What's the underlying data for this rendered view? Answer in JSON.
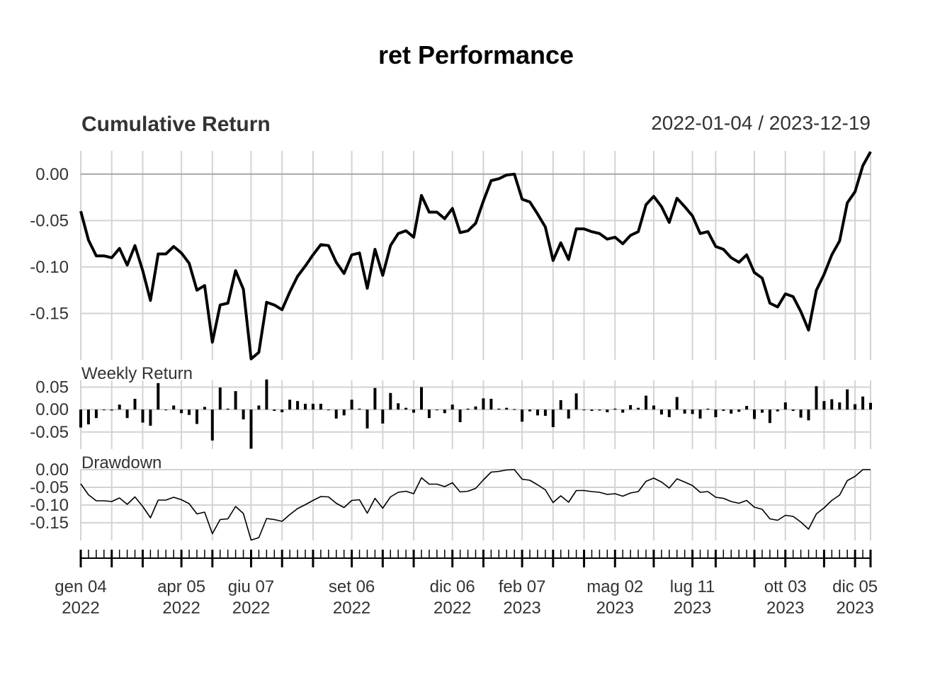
{
  "chart_data": {
    "type": "line",
    "title": "ret Performance",
    "date_range": "2022-01-04 / 2023-12-19",
    "start_date": "2022-01-04",
    "panels": {
      "cumulative": {
        "title": "Cumulative Return",
        "yticks": [
          0.0,
          -0.05,
          -0.1,
          -0.15
        ],
        "ytick_labels": [
          "0.00",
          "-0.05",
          "-0.10",
          "-0.15"
        ],
        "ylim": [
          -0.2,
          0.025
        ]
      },
      "weekly": {
        "title": "Weekly Return",
        "yticks": [
          0.05,
          0.0,
          -0.05
        ],
        "ytick_labels": [
          "0.05",
          "0.00",
          "-0.05"
        ],
        "ylim": [
          -0.088,
          0.065
        ]
      },
      "drawdown": {
        "title": "Drawdown",
        "yticks": [
          0.0,
          -0.05,
          -0.1,
          -0.15
        ],
        "ytick_labels": [
          "0.00",
          "-0.05",
          "-0.10",
          "-0.15"
        ],
        "ylim": [
          -0.2,
          0.0
        ]
      }
    },
    "x_tick_labels": [
      {
        "line1": "gen 04",
        "line2": "2022"
      },
      {
        "line1": "apr 05",
        "line2": "2022"
      },
      {
        "line1": "giu 07",
        "line2": "2022"
      },
      {
        "line1": "set 06",
        "line2": "2022"
      },
      {
        "line1": "dic 06",
        "line2": "2022"
      },
      {
        "line1": "feb 07",
        "line2": "2023"
      },
      {
        "line1": "mag 02",
        "line2": "2023"
      },
      {
        "line1": "lug 11",
        "line2": "2023"
      },
      {
        "line1": "ott 03",
        "line2": "2023"
      },
      {
        "line1": "dic 05",
        "line2": "2023"
      }
    ],
    "x_label_dates": [
      "2022-01-04",
      "2022-04-05",
      "2022-06-07",
      "2022-09-06",
      "2022-12-06",
      "2023-02-07",
      "2023-05-02",
      "2023-07-11",
      "2023-10-03",
      "2023-12-05"
    ],
    "x_grid_dates": [
      "2022-01-04",
      "2022-02-01",
      "2022-03-01",
      "2022-04-05",
      "2022-05-03",
      "2022-06-07",
      "2022-07-05",
      "2022-08-02",
      "2022-09-06",
      "2022-10-04",
      "2022-11-01",
      "2022-12-06",
      "2023-01-03",
      "2023-02-07",
      "2023-03-07",
      "2023-04-04",
      "2023-05-02",
      "2023-06-06",
      "2023-07-11",
      "2023-08-01",
      "2023-09-05",
      "2023-10-03",
      "2023-11-07",
      "2023-12-05",
      "2023-12-19"
    ],
    "series": [
      {
        "name": "ret",
        "cumulative_return": [
          -0.04,
          -0.071,
          -0.088,
          -0.088,
          -0.09,
          -0.08,
          -0.098,
          -0.077,
          -0.104,
          -0.136,
          -0.086,
          -0.086,
          -0.078,
          -0.085,
          -0.096,
          -0.125,
          -0.12,
          -0.181,
          -0.141,
          -0.139,
          -0.104,
          -0.124,
          -0.199,
          -0.192,
          -0.138,
          -0.141,
          -0.146,
          -0.127,
          -0.11,
          -0.099,
          -0.087,
          -0.076,
          -0.077,
          -0.095,
          -0.107,
          -0.087,
          -0.085,
          -0.123,
          -0.081,
          -0.109,
          -0.077,
          -0.064,
          -0.061,
          -0.068,
          -0.023,
          -0.041,
          -0.041,
          -0.048,
          -0.037,
          -0.063,
          -0.061,
          -0.053,
          -0.029,
          -0.007,
          -0.005,
          -0.001,
          0.0,
          -0.027,
          -0.03,
          -0.043,
          -0.057,
          -0.093,
          -0.074,
          -0.092,
          -0.059,
          -0.059,
          -0.062,
          -0.064,
          -0.07,
          -0.068,
          -0.075,
          -0.066,
          -0.062,
          -0.033,
          -0.024,
          -0.035,
          -0.052,
          -0.026,
          -0.035,
          -0.045,
          -0.064,
          -0.062,
          -0.078,
          -0.081,
          -0.09,
          -0.095,
          -0.087,
          -0.106,
          -0.112,
          -0.139,
          -0.143,
          -0.129,
          -0.132,
          -0.148,
          -0.168,
          -0.125,
          -0.108,
          -0.087,
          -0.072,
          -0.031,
          -0.019,
          0.009,
          0.024
        ],
        "weekly_return": [
          -0.04,
          -0.033,
          -0.019,
          0.0,
          -0.002,
          0.011,
          -0.019,
          0.024,
          -0.029,
          -0.036,
          0.059,
          0.0,
          0.009,
          -0.008,
          -0.012,
          -0.032,
          0.006,
          -0.069,
          0.049,
          0.002,
          0.041,
          -0.022,
          -0.087,
          0.009,
          0.067,
          -0.003,
          -0.006,
          0.022,
          0.019,
          0.013,
          0.013,
          0.013,
          -0.001,
          -0.02,
          -0.013,
          0.022,
          0.002,
          -0.042,
          0.048,
          -0.031,
          0.037,
          0.014,
          0.004,
          -0.007,
          0.05,
          -0.019,
          0.0,
          -0.008,
          0.011,
          -0.028,
          0.002,
          0.007,
          0.025,
          0.024,
          0.002,
          0.004,
          0.001,
          -0.027,
          -0.004,
          -0.013,
          -0.014,
          -0.039,
          0.021,
          -0.02,
          0.036,
          0.0,
          -0.003,
          -0.002,
          -0.006,
          0.002,
          -0.007,
          0.01,
          0.004,
          0.031,
          0.009,
          -0.011,
          -0.017,
          0.028,
          -0.009,
          -0.01,
          -0.02,
          0.002,
          -0.017,
          -0.003,
          -0.009,
          -0.005,
          0.008,
          -0.021,
          -0.007,
          -0.03,
          -0.004,
          0.016,
          -0.003,
          -0.018,
          -0.024,
          0.052,
          0.019,
          0.023,
          0.016,
          0.045,
          0.012,
          0.029,
          0.015
        ],
        "drawdown": [
          -0.04,
          -0.071,
          -0.088,
          -0.088,
          -0.09,
          -0.08,
          -0.098,
          -0.077,
          -0.104,
          -0.136,
          -0.086,
          -0.086,
          -0.078,
          -0.085,
          -0.096,
          -0.125,
          -0.12,
          -0.181,
          -0.141,
          -0.139,
          -0.104,
          -0.124,
          -0.199,
          -0.192,
          -0.138,
          -0.141,
          -0.146,
          -0.127,
          -0.11,
          -0.099,
          -0.087,
          -0.076,
          -0.077,
          -0.095,
          -0.107,
          -0.087,
          -0.085,
          -0.123,
          -0.081,
          -0.109,
          -0.077,
          -0.064,
          -0.061,
          -0.068,
          -0.023,
          -0.041,
          -0.041,
          -0.048,
          -0.037,
          -0.063,
          -0.061,
          -0.053,
          -0.029,
          -0.007,
          -0.005,
          -0.001,
          0.0,
          -0.027,
          -0.03,
          -0.043,
          -0.057,
          -0.093,
          -0.074,
          -0.092,
          -0.059,
          -0.059,
          -0.062,
          -0.064,
          -0.07,
          -0.068,
          -0.075,
          -0.066,
          -0.062,
          -0.033,
          -0.024,
          -0.035,
          -0.052,
          -0.026,
          -0.035,
          -0.045,
          -0.064,
          -0.062,
          -0.078,
          -0.081,
          -0.09,
          -0.095,
          -0.087,
          -0.106,
          -0.112,
          -0.139,
          -0.143,
          -0.129,
          -0.132,
          -0.148,
          -0.168,
          -0.125,
          -0.108,
          -0.087,
          -0.072,
          -0.031,
          -0.019,
          0.0,
          0.0
        ]
      }
    ]
  }
}
